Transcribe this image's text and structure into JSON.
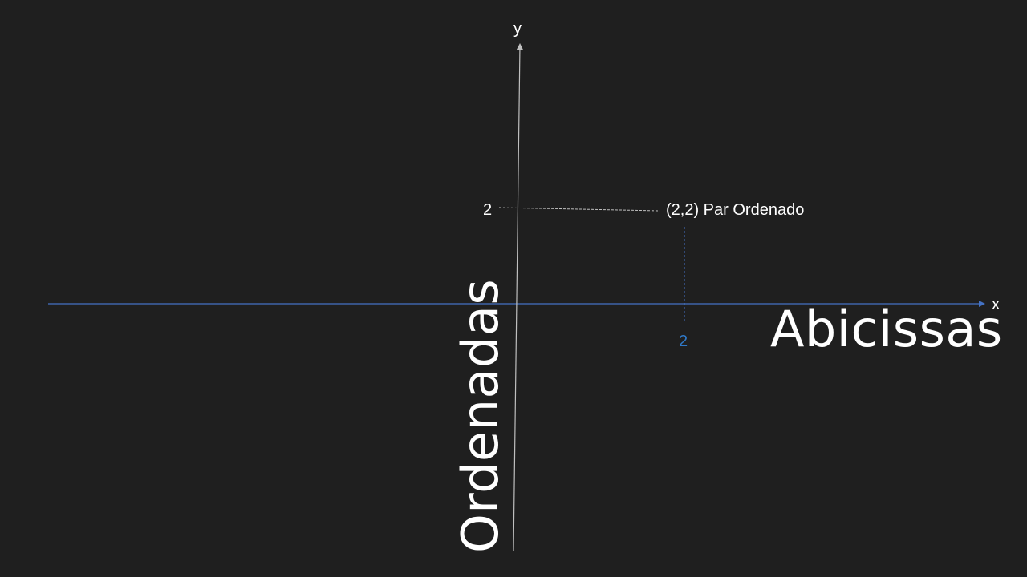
{
  "diagram": {
    "axis_y_label": "y",
    "axis_x_label": "x",
    "tick_y_value": "2",
    "tick_x_value": "2",
    "point_label": "(2,2) Par Ordenado",
    "abscissa_label": "Abicissas",
    "ordinate_label": "Ordenadas"
  },
  "colors": {
    "background": "#1f1f1f",
    "x_axis": "#4472c4",
    "y_axis": "#bfbfbf",
    "x_tick_label": "#2f78c6",
    "text": "#ffffff"
  }
}
